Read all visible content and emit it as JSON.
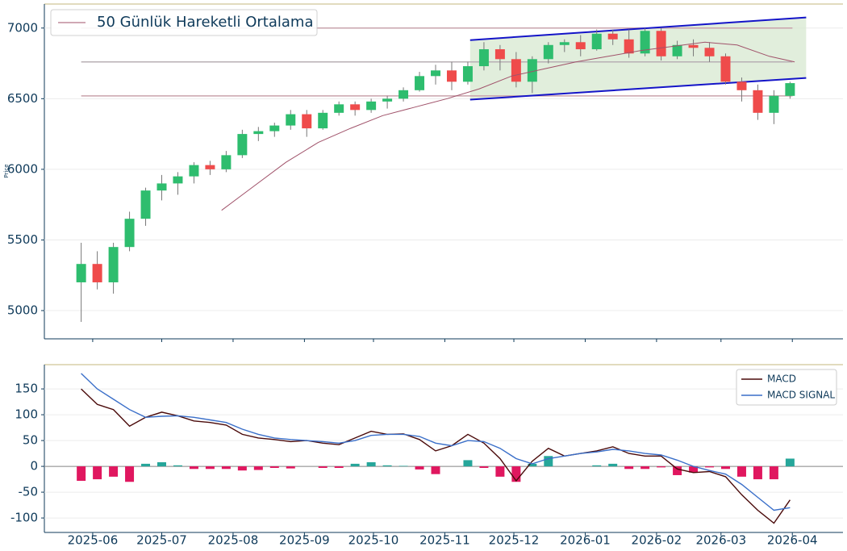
{
  "chart_data": [
    {
      "type": "candlestick",
      "y_label": "Price",
      "x": [
        "2025-05-27",
        "2025-06-03",
        "2025-06-10",
        "2025-06-17",
        "2025-06-24",
        "2025-07-01",
        "2025-07-08",
        "2025-07-15",
        "2025-07-22",
        "2025-07-29",
        "2025-08-05",
        "2025-08-12",
        "2025-08-19",
        "2025-08-26",
        "2025-09-02",
        "2025-09-09",
        "2025-09-16",
        "2025-09-23",
        "2025-09-30",
        "2025-10-07",
        "2025-10-14",
        "2025-10-21",
        "2025-10-28",
        "2025-11-04",
        "2025-11-11",
        "2025-11-18",
        "2025-11-25",
        "2025-12-02",
        "2025-12-09",
        "2025-12-16",
        "2025-12-23",
        "2025-12-30",
        "2026-01-06",
        "2026-01-13",
        "2026-01-20",
        "2026-01-27",
        "2026-02-03",
        "2026-02-10",
        "2026-02-17",
        "2026-02-24",
        "2026-03-03",
        "2026-03-10",
        "2026-03-17",
        "2026-03-24",
        "2026-03-31"
      ],
      "open": [
        5200,
        5330,
        5200,
        5450,
        5650,
        5850,
        5900,
        5950,
        6030,
        6000,
        6100,
        6250,
        6270,
        6310,
        6390,
        6290,
        6400,
        6460,
        6420,
        6480,
        6500,
        6560,
        6660,
        6700,
        6620,
        6730,
        6850,
        6780,
        6620,
        6780,
        6880,
        6900,
        6850,
        6960,
        6920,
        6820,
        6980,
        6800,
        6880,
        6860,
        6800,
        6620,
        6560,
        6400,
        6520
      ],
      "high": [
        5480,
        5420,
        5480,
        5700,
        5870,
        5960,
        5980,
        6050,
        6060,
        6130,
        6280,
        6300,
        6330,
        6420,
        6420,
        6420,
        6480,
        6480,
        6500,
        6520,
        6580,
        6690,
        6740,
        6760,
        6760,
        6900,
        6880,
        6830,
        6800,
        6900,
        6920,
        6950,
        6990,
        6990,
        6990,
        7000,
        7000,
        6910,
        6920,
        6900,
        6820,
        6650,
        6600,
        6560,
        6620
      ],
      "low": [
        4920,
        5150,
        5120,
        5420,
        5600,
        5780,
        5820,
        5900,
        5960,
        5980,
        6080,
        6200,
        6230,
        6280,
        6230,
        6280,
        6380,
        6380,
        6400,
        6430,
        6480,
        6550,
        6600,
        6560,
        6600,
        6700,
        6700,
        6580,
        6540,
        6750,
        6830,
        6800,
        6840,
        6880,
        6790,
        6800,
        6770,
        6780,
        6800,
        6760,
        6600,
        6480,
        6350,
        6320,
        6500
      ],
      "close": [
        5330,
        5200,
        5450,
        5650,
        5850,
        5900,
        5950,
        6030,
        6000,
        6100,
        6250,
        6270,
        6310,
        6390,
        6290,
        6400,
        6460,
        6420,
        6480,
        6500,
        6560,
        6660,
        6700,
        6620,
        6730,
        6850,
        6780,
        6620,
        6780,
        6880,
        6900,
        6850,
        6960,
        6920,
        6820,
        6980,
        6800,
        6880,
        6860,
        6800,
        6620,
        6560,
        6400,
        6520,
        6610
      ],
      "up_color": "#2ebd6e",
      "down_color": "#ef4b4b",
      "ma": {
        "name": "50 Günlük Hareketli Ortalama",
        "color": "#a0526a",
        "x": [
          "2025-07-27",
          "2025-08-10",
          "2025-08-24",
          "2025-09-07",
          "2025-09-21",
          "2025-10-05",
          "2025-10-19",
          "2025-11-02",
          "2025-11-16",
          "2025-11-30",
          "2025-12-14",
          "2025-12-28",
          "2026-01-11",
          "2026-01-25",
          "2026-02-08",
          "2026-02-22",
          "2026-03-08",
          "2026-03-22",
          "2026-04-02"
        ],
        "values": [
          5710,
          5880,
          6050,
          6190,
          6290,
          6380,
          6440,
          6500,
          6570,
          6660,
          6710,
          6760,
          6800,
          6840,
          6870,
          6900,
          6880,
          6800,
          6760
        ]
      },
      "hlines": [
        {
          "value": 7000,
          "color": "#c9a3ac"
        },
        {
          "value": 6760,
          "color": "#b8b0b4"
        },
        {
          "value": 6520,
          "color": "#c9a3ac"
        }
      ],
      "channel": {
        "x": [
          "2025-11-12",
          "2026-04-07"
        ],
        "upper": [
          6915,
          7075
        ],
        "lower": [
          6493,
          6647
        ],
        "color": "#1414c8",
        "fill": "#d9ead3"
      },
      "xlim": [
        "2025-05-11",
        "2026-04-23"
      ],
      "ylim": [
        4800,
        7170
      ],
      "yticks": [
        5000,
        5500,
        6000,
        6500,
        7000
      ],
      "xticks": [
        "2025-06-01",
        "2025-07-01",
        "2025-08-01",
        "2025-09-01",
        "2025-10-01",
        "2025-11-01",
        "2025-12-01",
        "2026-01-01",
        "2026-02-01",
        "2026-03-01",
        "2026-04-01"
      ],
      "grid": true
    },
    {
      "type": "line",
      "x": [
        "2025-05-27",
        "2025-06-03",
        "2025-06-10",
        "2025-06-17",
        "2025-06-24",
        "2025-07-01",
        "2025-07-08",
        "2025-07-15",
        "2025-07-22",
        "2025-07-29",
        "2025-08-05",
        "2025-08-12",
        "2025-08-19",
        "2025-08-26",
        "2025-09-02",
        "2025-09-09",
        "2025-09-16",
        "2025-09-23",
        "2025-09-30",
        "2025-10-07",
        "2025-10-14",
        "2025-10-21",
        "2025-10-28",
        "2025-11-04",
        "2025-11-11",
        "2025-11-18",
        "2025-11-25",
        "2025-12-02",
        "2025-12-09",
        "2025-12-16",
        "2025-12-23",
        "2025-12-30",
        "2026-01-06",
        "2026-01-13",
        "2026-01-20",
        "2026-01-27",
        "2026-02-03",
        "2026-02-10",
        "2026-02-17",
        "2026-02-24",
        "2026-03-03",
        "2026-03-10",
        "2026-03-17",
        "2026-03-24",
        "2026-03-31"
      ],
      "series": [
        {
          "name": "MACD",
          "color": "#4a0a0a",
          "values": [
            150,
            120,
            110,
            78,
            95,
            105,
            98,
            88,
            85,
            80,
            62,
            55,
            52,
            48,
            50,
            45,
            42,
            55,
            68,
            62,
            63,
            52,
            30,
            40,
            62,
            45,
            15,
            -28,
            10,
            35,
            20,
            25,
            30,
            38,
            25,
            20,
            20,
            -5,
            -12,
            -10,
            -20,
            -55,
            -85,
            -110,
            -65
          ]
        },
        {
          "name": "MACD SIGNAL",
          "color": "#3a6fc9",
          "values": [
            180,
            150,
            130,
            110,
            95,
            97,
            98,
            95,
            90,
            85,
            72,
            62,
            55,
            52,
            50,
            48,
            45,
            50,
            60,
            62,
            62,
            58,
            45,
            40,
            50,
            48,
            35,
            15,
            5,
            15,
            20,
            25,
            28,
            33,
            30,
            25,
            22,
            12,
            0,
            -8,
            -15,
            -35,
            -60,
            -85,
            -80
          ]
        }
      ],
      "histogram": {
        "values": [
          -28,
          -25,
          -20,
          -30,
          5,
          8,
          2,
          -5,
          -5,
          -5,
          -8,
          -7,
          -3,
          -4,
          0,
          -3,
          -3,
          5,
          8,
          2,
          1,
          -6,
          -15,
          0,
          12,
          -3,
          -20,
          -30,
          5,
          20,
          0,
          0,
          2,
          5,
          -5,
          -5,
          -2,
          -17,
          -12,
          -2,
          -5,
          -20,
          -25,
          -25,
          15
        ],
        "up_color": "#26a69a",
        "down_color": "#e0175f"
      },
      "xlim": [
        "2025-05-11",
        "2026-04-23"
      ],
      "ylim": [
        -128,
        197
      ],
      "yticks": [
        -100,
        -50,
        0,
        50,
        100,
        150
      ],
      "xticks": [
        {
          "value": "2025-06-01",
          "label": "2025-06"
        },
        {
          "value": "2025-07-01",
          "label": "2025-07"
        },
        {
          "value": "2025-08-01",
          "label": "2025-08"
        },
        {
          "value": "2025-09-01",
          "label": "2025-09"
        },
        {
          "value": "2025-10-01",
          "label": "2025-10"
        },
        {
          "value": "2025-11-01",
          "label": "2025-11"
        },
        {
          "value": "2025-12-01",
          "label": "2025-12"
        },
        {
          "value": "2026-01-01",
          "label": "2026-01"
        },
        {
          "value": "2026-02-01",
          "label": "2026-02"
        },
        {
          "value": "2026-03-01",
          "label": "2026-03"
        },
        {
          "value": "2026-04-01",
          "label": "2026-04"
        }
      ],
      "grid": true,
      "legend": "upper-right"
    }
  ]
}
